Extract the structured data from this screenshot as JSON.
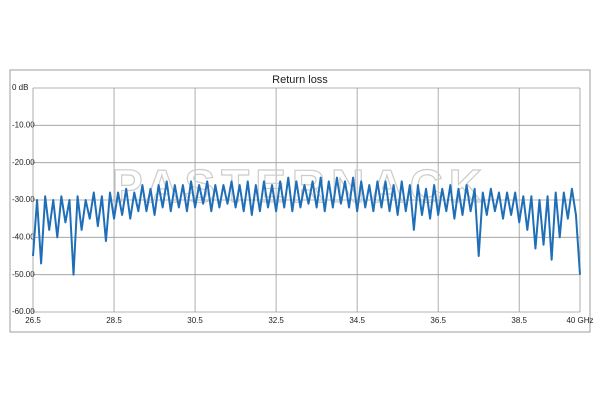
{
  "chart_data": {
    "type": "line",
    "title": "Return loss",
    "watermark": "PASTERNACK",
    "x": [
      26.5,
      26.6,
      26.7,
      26.8,
      26.9,
      27.0,
      27.1,
      27.2,
      27.3,
      27.4,
      27.5,
      27.6,
      27.7,
      27.8,
      27.9,
      28.0,
      28.1,
      28.2,
      28.3,
      28.4,
      28.5,
      28.6,
      28.7,
      28.8,
      28.9,
      29.0,
      29.1,
      29.2,
      29.3,
      29.4,
      29.5,
      29.6,
      29.7,
      29.8,
      29.9,
      30.0,
      30.1,
      30.2,
      30.3,
      30.4,
      30.5,
      30.6,
      30.7,
      30.8,
      30.9,
      31.0,
      31.1,
      31.2,
      31.3,
      31.4,
      31.5,
      31.6,
      31.7,
      31.8,
      31.9,
      32.0,
      32.1,
      32.2,
      32.3,
      32.4,
      32.5,
      32.6,
      32.7,
      32.8,
      32.9,
      33.0,
      33.1,
      33.2,
      33.3,
      33.4,
      33.5,
      33.6,
      33.7,
      33.8,
      33.9,
      34.0,
      34.1,
      34.2,
      34.3,
      34.4,
      34.5,
      34.6,
      34.7,
      34.8,
      34.9,
      35.0,
      35.1,
      35.2,
      35.3,
      35.4,
      35.5,
      35.6,
      35.7,
      35.8,
      35.9,
      36.0,
      36.1,
      36.2,
      36.3,
      36.4,
      36.5,
      36.6,
      36.7,
      36.8,
      36.9,
      37.0,
      37.1,
      37.2,
      37.3,
      37.4,
      37.5,
      37.6,
      37.7,
      37.8,
      37.9,
      38.0,
      38.1,
      38.2,
      38.3,
      38.4,
      38.5,
      38.6,
      38.7,
      38.8,
      38.9,
      39.0,
      39.1,
      39.2,
      39.3,
      39.4,
      39.5,
      39.6,
      39.7,
      39.8,
      39.9,
      40.0
    ],
    "series": [
      {
        "name": "Return loss",
        "color": "#1f6fb8",
        "values": [
          -45,
          -30,
          -47,
          -29,
          -38,
          -30,
          -40,
          -29,
          -36,
          -30,
          -50,
          -29,
          -38,
          -30,
          -35,
          -28,
          -37,
          -29,
          -41,
          -28,
          -35,
          -28,
          -34,
          -27,
          -35,
          -28,
          -33,
          -26,
          -33,
          -27,
          -34,
          -26,
          -32,
          -25,
          -33,
          -26,
          -32,
          -26,
          -33,
          -25,
          -32,
          -26,
          -31,
          -25,
          -33,
          -26,
          -32,
          -26,
          -31,
          -25,
          -32,
          -26,
          -33,
          -25,
          -34,
          -26,
          -33,
          -25,
          -32,
          -26,
          -33,
          -25,
          -32,
          -24,
          -33,
          -25,
          -32,
          -26,
          -31,
          -25,
          -32,
          -24,
          -33,
          -25,
          -32,
          -24,
          -31,
          -25,
          -32,
          -24,
          -33,
          -25,
          -32,
          -26,
          -33,
          -25,
          -32,
          -25,
          -33,
          -26,
          -34,
          -25,
          -33,
          -26,
          -38,
          -26,
          -34,
          -27,
          -35,
          -26,
          -34,
          -27,
          -33,
          -26,
          -35,
          -27,
          -34,
          -26,
          -33,
          -27,
          -45,
          -28,
          -34,
          -27,
          -33,
          -28,
          -35,
          -28,
          -34,
          -28,
          -36,
          -29,
          -38,
          -29,
          -43,
          -30,
          -42,
          -29,
          -46,
          -28,
          -40,
          -28,
          -35,
          -27,
          -34,
          -50
        ]
      }
    ],
    "xlim": [
      26.5,
      40
    ],
    "xticks": [
      26.5,
      28.5,
      30.5,
      32.5,
      34.5,
      36.5,
      38.5,
      {
        "value": 40,
        "label": "40 GHz"
      }
    ],
    "ylim": [
      -60,
      0
    ],
    "yticks": [
      {
        "value": 0,
        "label": "0 dB"
      },
      {
        "value": -10,
        "label": "-10.00"
      },
      {
        "value": -20,
        "label": "-20.00"
      },
      {
        "value": -30,
        "label": "-30.00"
      },
      {
        "value": -40,
        "label": "-40.00"
      },
      {
        "value": -50,
        "label": "-50.00"
      },
      {
        "value": -60,
        "label": "-60.00"
      }
    ],
    "grid": true
  }
}
